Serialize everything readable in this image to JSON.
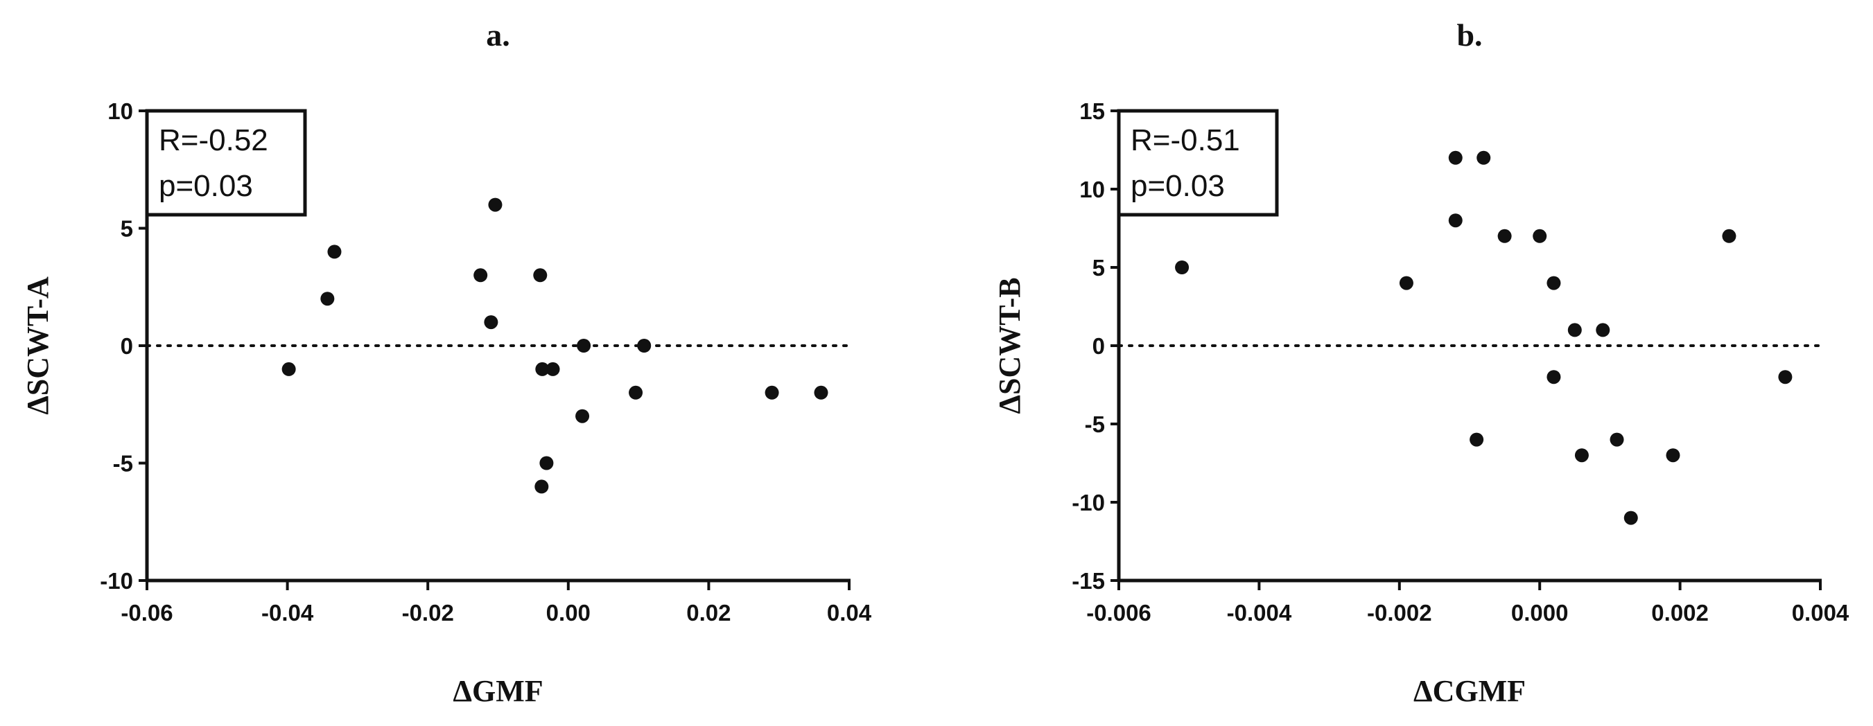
{
  "chart_data": [
    {
      "type": "scatter",
      "panel_label": "a.",
      "xlabel": "ΔGMF",
      "ylabel": "ΔSCWT-A",
      "xlim": [
        -0.06,
        0.04
      ],
      "ylim": [
        -10,
        10
      ],
      "x_ticks": [
        -0.06,
        -0.04,
        -0.02,
        0,
        0.02,
        0.04
      ],
      "x_tick_labels": [
        "-0.06",
        "-0.04",
        "-0.02",
        "0.00",
        "0.02",
        "0.04"
      ],
      "y_ticks": [
        10,
        5,
        0,
        -5,
        -10
      ],
      "y_tick_labels": [
        "10",
        "5",
        "0",
        "-5",
        "-10"
      ],
      "reference_line": {
        "y": 0,
        "style": "dotted"
      },
      "stats": {
        "r_text": "R=-0.52",
        "p_text": "p=0.03"
      },
      "grid": false,
      "points": [
        {
          "x": -0.0398,
          "y": -1
        },
        {
          "x": -0.0343,
          "y": 2
        },
        {
          "x": -0.0333,
          "y": 4
        },
        {
          "x": -0.0125,
          "y": 3
        },
        {
          "x": -0.011,
          "y": 1
        },
        {
          "x": -0.0104,
          "y": 6
        },
        {
          "x": -0.004,
          "y": 3
        },
        {
          "x": -0.0037,
          "y": -1
        },
        {
          "x": -0.0038,
          "y": -6
        },
        {
          "x": -0.0031,
          "y": -5
        },
        {
          "x": -0.0022,
          "y": -1
        },
        {
          "x": 0.002,
          "y": -3
        },
        {
          "x": 0.0022,
          "y": 0
        },
        {
          "x": 0.0096,
          "y": -2
        },
        {
          "x": 0.0108,
          "y": 0
        },
        {
          "x": 0.029,
          "y": -2
        },
        {
          "x": 0.036,
          "y": -2
        }
      ]
    },
    {
      "type": "scatter",
      "panel_label": "b.",
      "xlabel": "ΔCGMF",
      "ylabel": "ΔSCWT-B",
      "xlim": [
        -0.006,
        0.004
      ],
      "ylim": [
        -15,
        15
      ],
      "x_ticks": [
        -0.006,
        -0.004,
        -0.002,
        0,
        0.002,
        0.004
      ],
      "x_tick_labels": [
        "-0.006",
        "-0.004",
        "-0.002",
        "0.000",
        "0.002",
        "0.004"
      ],
      "y_ticks": [
        15,
        10,
        5,
        0,
        -5,
        -10,
        -15
      ],
      "y_tick_labels": [
        "15",
        "10",
        "5",
        "0",
        "-5",
        "-10",
        "-15"
      ],
      "reference_line": {
        "y": 0,
        "style": "dotted"
      },
      "stats": {
        "r_text": "R=-0.51",
        "p_text": "p=0.03"
      },
      "grid": false,
      "points": [
        {
          "x": -0.0051,
          "y": 5
        },
        {
          "x": -0.0019,
          "y": 4
        },
        {
          "x": -0.0012,
          "y": 12
        },
        {
          "x": -0.0012,
          "y": 8
        },
        {
          "x": -0.0009,
          "y": -6
        },
        {
          "x": -0.0008,
          "y": 12
        },
        {
          "x": -0.0005,
          "y": 7
        },
        {
          "x": 0.0,
          "y": 7
        },
        {
          "x": 0.0002,
          "y": 4
        },
        {
          "x": 0.0002,
          "y": -2
        },
        {
          "x": 0.0005,
          "y": 1
        },
        {
          "x": 0.0006,
          "y": -7
        },
        {
          "x": 0.0009,
          "y": 1
        },
        {
          "x": 0.0011,
          "y": -6
        },
        {
          "x": 0.0013,
          "y": -11
        },
        {
          "x": 0.0019,
          "y": -7
        },
        {
          "x": 0.0027,
          "y": 7
        },
        {
          "x": 0.0035,
          "y": -2
        }
      ]
    }
  ]
}
